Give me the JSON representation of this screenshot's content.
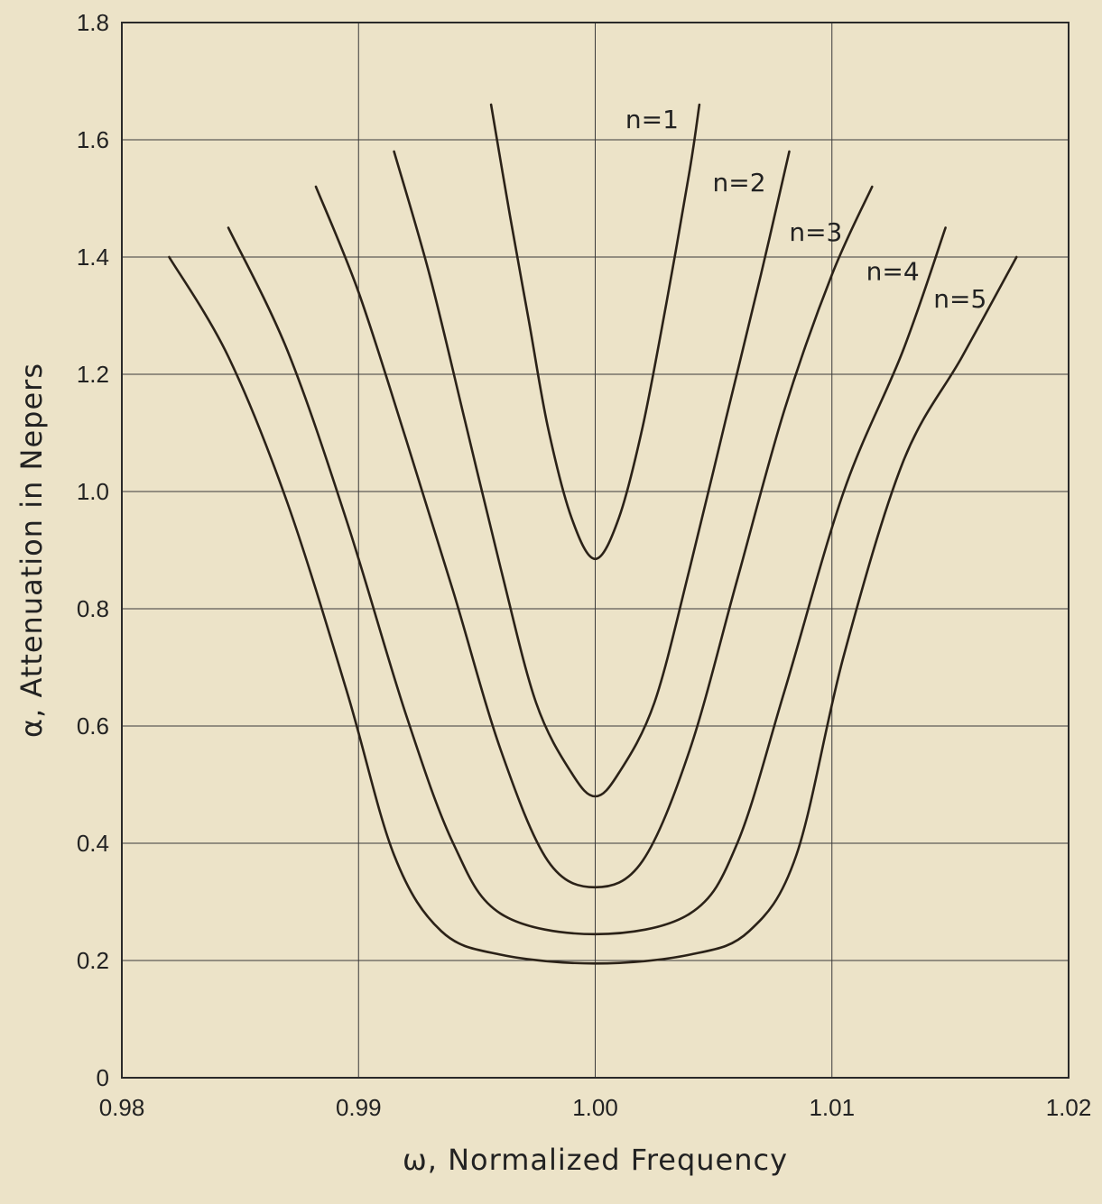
{
  "colors": {
    "background": "#ece3c8",
    "line": "#2b2218",
    "grid": "#3a3a3a"
  },
  "chart_data": {
    "type": "line",
    "title": "",
    "xlabel": "ω, Normalized Frequency",
    "ylabel": "α, Attenuation in Nepers",
    "xlim": [
      0.98,
      1.02
    ],
    "ylim": [
      0,
      1.8
    ],
    "x_ticks": [
      0.98,
      0.99,
      1.0,
      1.01,
      1.02
    ],
    "x_tick_labels": [
      "0.98",
      "0.99",
      "1.00",
      "1.01",
      "1.02"
    ],
    "y_ticks": [
      0,
      0.2,
      0.4,
      0.6,
      0.8,
      1.0,
      1.2,
      1.4,
      1.6,
      1.8
    ],
    "y_tick_labels": [
      "0",
      "0.2",
      "0.4",
      "0.6",
      "0.8",
      "1.0",
      "1.2",
      "1.4",
      "1.6",
      "1.8"
    ],
    "grid": true,
    "legend": "inline labels at top-right",
    "series": [
      {
        "name": "n=1",
        "points": [
          [
            0.9956,
            1.66
          ],
          [
            0.9964,
            1.47
          ],
          [
            0.9972,
            1.29
          ],
          [
            0.998,
            1.11
          ],
          [
            0.999,
            0.955
          ],
          [
            1.0,
            0.885
          ],
          [
            1.001,
            0.955
          ],
          [
            1.002,
            1.11
          ],
          [
            1.003,
            1.32
          ],
          [
            1.004,
            1.55
          ],
          [
            1.0044,
            1.66
          ]
        ]
      },
      {
        "name": "n=2",
        "points": [
          [
            0.9915,
            1.58
          ],
          [
            0.993,
            1.37
          ],
          [
            0.9945,
            1.12
          ],
          [
            0.996,
            0.87
          ],
          [
            0.9975,
            0.64
          ],
          [
            0.999,
            0.52
          ],
          [
            1.0,
            0.48
          ],
          [
            1.001,
            0.52
          ],
          [
            1.0025,
            0.64
          ],
          [
            1.004,
            0.87
          ],
          [
            1.0055,
            1.12
          ],
          [
            1.007,
            1.37
          ],
          [
            1.0082,
            1.58
          ]
        ]
      },
      {
        "name": "n=3",
        "points": [
          [
            0.9882,
            1.52
          ],
          [
            0.99,
            1.34
          ],
          [
            0.992,
            1.09
          ],
          [
            0.994,
            0.83
          ],
          [
            0.996,
            0.56
          ],
          [
            0.998,
            0.37
          ],
          [
            1.0,
            0.325
          ],
          [
            1.002,
            0.37
          ],
          [
            1.004,
            0.56
          ],
          [
            1.006,
            0.85
          ],
          [
            1.008,
            1.14
          ],
          [
            1.01,
            1.37
          ],
          [
            1.0117,
            1.52
          ]
        ]
      },
      {
        "name": "n=4",
        "points": [
          [
            0.9845,
            1.45
          ],
          [
            0.987,
            1.24
          ],
          [
            0.9895,
            0.95
          ],
          [
            0.992,
            0.62
          ],
          [
            0.994,
            0.4
          ],
          [
            0.996,
            0.28
          ],
          [
            1.0,
            0.245
          ],
          [
            1.004,
            0.28
          ],
          [
            1.006,
            0.4
          ],
          [
            1.008,
            0.66
          ],
          [
            1.0105,
            1.0
          ],
          [
            1.013,
            1.24
          ],
          [
            1.0148,
            1.45
          ]
        ]
      },
      {
        "name": "n=5",
        "points": [
          [
            0.982,
            1.4
          ],
          [
            0.9845,
            1.23
          ],
          [
            0.987,
            0.98
          ],
          [
            0.9895,
            0.66
          ],
          [
            0.9915,
            0.38
          ],
          [
            0.9935,
            0.25
          ],
          [
            0.996,
            0.21
          ],
          [
            1.0,
            0.195
          ],
          [
            1.004,
            0.21
          ],
          [
            1.0065,
            0.25
          ],
          [
            1.0085,
            0.38
          ],
          [
            1.0105,
            0.72
          ],
          [
            1.013,
            1.05
          ],
          [
            1.0155,
            1.23
          ],
          [
            1.0178,
            1.4
          ]
        ]
      }
    ]
  }
}
